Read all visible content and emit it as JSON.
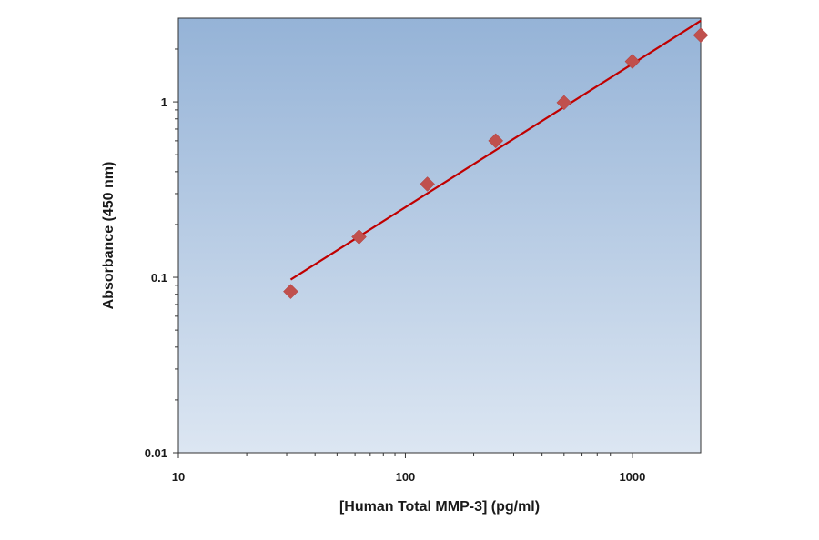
{
  "chart_data": {
    "type": "scatter",
    "xlabel": "[Human Total MMP-3] (pg/ml)",
    "ylabel": "Absorbance (450 nm)",
    "x_scale": "log",
    "y_scale": "log",
    "xlim": [
      10,
      2000
    ],
    "ylim": [
      0.01,
      3
    ],
    "x_ticks": [
      10,
      100,
      1000
    ],
    "x_tick_labels": [
      "10",
      "100",
      "1000"
    ],
    "y_ticks": [
      0.01,
      0.1,
      1
    ],
    "y_tick_labels": [
      "0.01",
      "0.1",
      "1"
    ],
    "grid": false,
    "series": [
      {
        "type": "scatter",
        "x": [
          31.25,
          62.5,
          125,
          250,
          500,
          1000,
          2000
        ],
        "y": [
          0.083,
          0.17,
          0.34,
          0.6,
          0.99,
          1.7,
          2.4
        ]
      },
      {
        "type": "line",
        "x": [
          31.25,
          2000
        ],
        "y": [
          0.097,
          2.9
        ]
      }
    ],
    "colors": {
      "marker": "#c0504d",
      "fit_line": "#c00000",
      "plot_bg_top": "#95b3d7",
      "plot_bg_bottom": "#dce6f2"
    }
  }
}
